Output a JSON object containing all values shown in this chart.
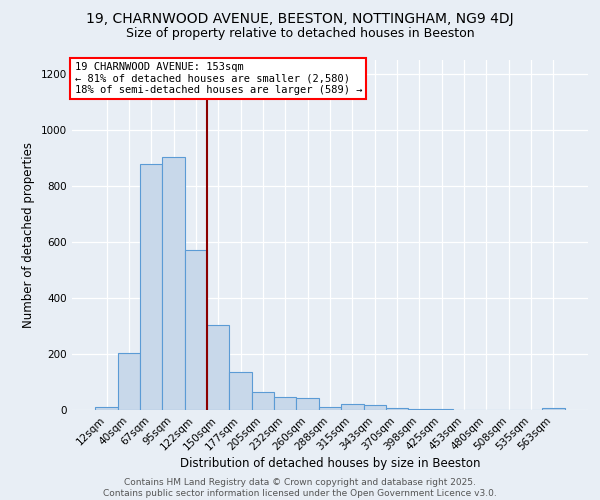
{
  "title_line1": "19, CHARNWOOD AVENUE, BEESTON, NOTTINGHAM, NG9 4DJ",
  "title_line2": "Size of property relative to detached houses in Beeston",
  "xlabel": "Distribution of detached houses by size in Beeston",
  "ylabel": "Number of detached properties",
  "categories": [
    "12sqm",
    "40sqm",
    "67sqm",
    "95sqm",
    "122sqm",
    "150sqm",
    "177sqm",
    "205sqm",
    "232sqm",
    "260sqm",
    "288sqm",
    "315sqm",
    "343sqm",
    "370sqm",
    "398sqm",
    "425sqm",
    "453sqm",
    "480sqm",
    "508sqm",
    "535sqm",
    "563sqm"
  ],
  "values": [
    10,
    205,
    880,
    905,
    570,
    305,
    135,
    65,
    48,
    42,
    10,
    20,
    18,
    8,
    3,
    2,
    1,
    1,
    1,
    0,
    8
  ],
  "bar_color": "#c8d8ea",
  "bar_edge_color": "#5b9bd5",
  "vline_x": 4.5,
  "vline_color": "#8b0000",
  "annotation_title": "19 CHARNWOOD AVENUE: 153sqm",
  "annotation_line2": "← 81% of detached houses are smaller (2,580)",
  "annotation_line3": "18% of semi-detached houses are larger (589) →",
  "ylim": [
    0,
    1250
  ],
  "yticks": [
    0,
    200,
    400,
    600,
    800,
    1000,
    1200
  ],
  "bg_color": "#e8eef5",
  "grid_color": "#ffffff",
  "footer_line1": "Contains HM Land Registry data © Crown copyright and database right 2025.",
  "footer_line2": "Contains public sector information licensed under the Open Government Licence v3.0.",
  "title_fontsize": 10,
  "subtitle_fontsize": 9,
  "annotation_fontsize": 7.5,
  "xlabel_fontsize": 8.5,
  "ylabel_fontsize": 8.5,
  "tick_fontsize": 7.5,
  "footer_fontsize": 6.5
}
